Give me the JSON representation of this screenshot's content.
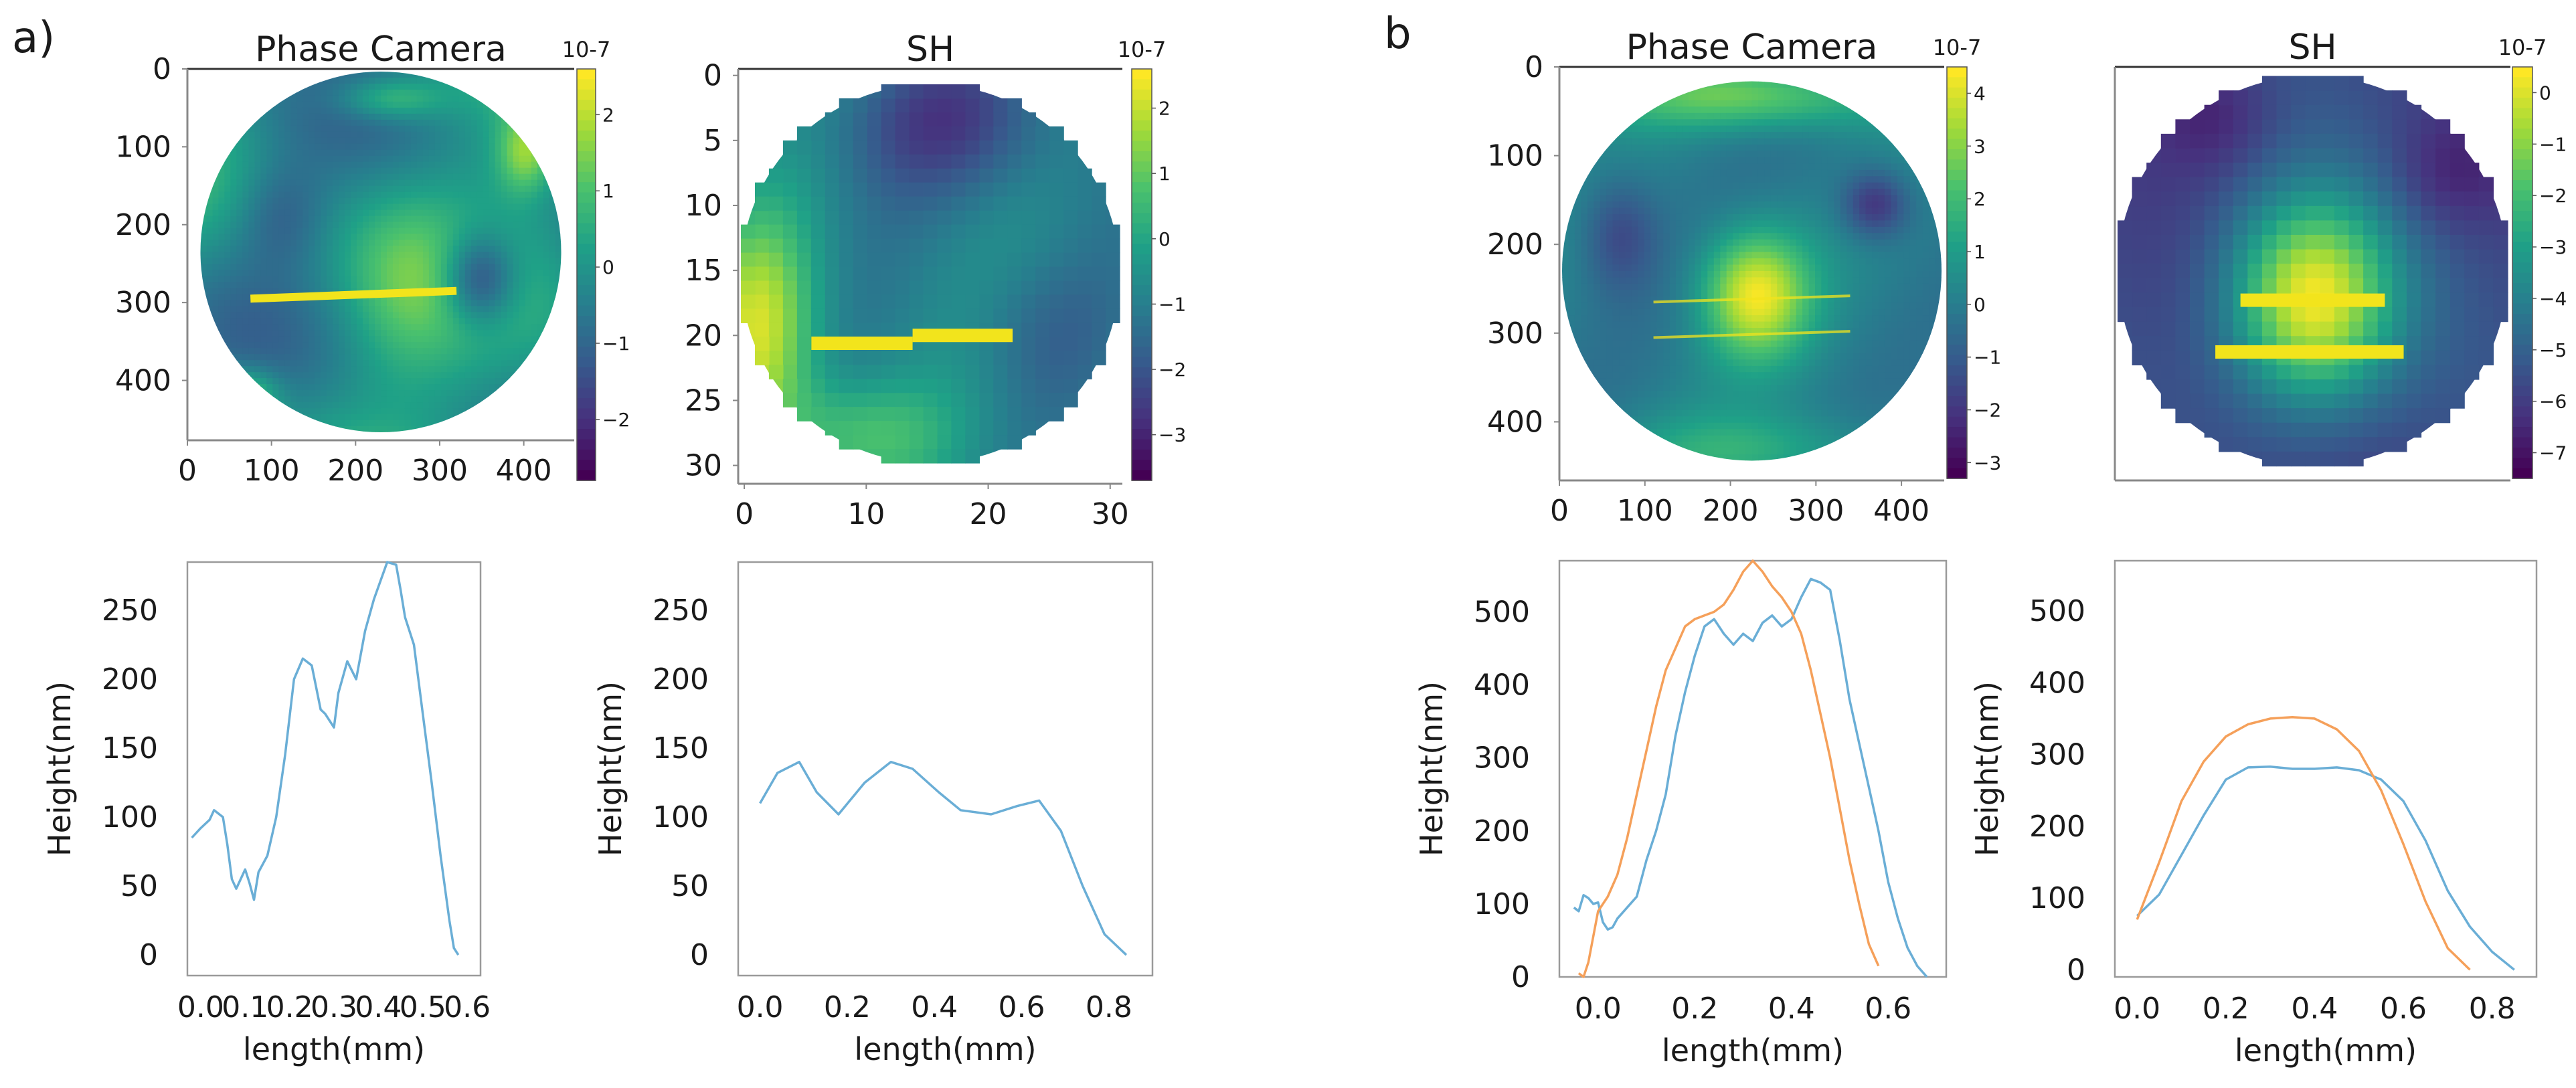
{
  "figure": {
    "panel_labels": [
      "a)",
      "b"
    ]
  },
  "colors": {
    "viridis": [
      "#440154",
      "#46327e",
      "#365c8d",
      "#277f8e",
      "#1fa187",
      "#4ac16d",
      "#a0da39",
      "#fde725"
    ],
    "line_blue": "#6aaed6",
    "line_orange": "#f5a05a",
    "marker": "#f2e41c"
  },
  "chart_data": [
    {
      "id": "a-phase-map",
      "type": "heatmap",
      "title": "Phase Camera",
      "x_ticks": [
        "0",
        "100",
        "200",
        "300",
        "400"
      ],
      "y_ticks": [
        "0",
        "100",
        "200",
        "300",
        "400"
      ],
      "xlim": [
        0,
        460
      ],
      "ylim": [
        0,
        470
      ],
      "colorbar": {
        "exponent": "10-7",
        "ticks": [
          "2",
          "1",
          "0",
          "-1",
          "-2"
        ],
        "range": [
          -2.8,
          2.6
        ]
      },
      "profile_lines": [
        [
          [
            75,
            295
          ],
          [
            320,
            285
          ]
        ]
      ]
    },
    {
      "id": "a-sh-map",
      "type": "heatmap",
      "title": "SH",
      "x_ticks": [
        "0",
        "10",
        "20",
        "30"
      ],
      "y_ticks": [
        "0",
        "5",
        "10",
        "15",
        "20",
        "25",
        "30"
      ],
      "xlim": [
        -0.5,
        31
      ],
      "ylim": [
        -0.5,
        31
      ],
      "colorbar": {
        "exponent": "10-7",
        "ticks": [
          "2",
          "1",
          "0",
          "-1",
          "-2",
          "-3"
        ],
        "range": [
          -3.7,
          2.6
        ]
      },
      "profile_lines": [
        [
          [
            5.5,
            20.6
          ],
          [
            13.8,
            20.6
          ]
        ],
        [
          [
            13.8,
            20
          ],
          [
            22,
            20
          ]
        ]
      ]
    },
    {
      "id": "a-phase-profile",
      "type": "line",
      "xlabel": "length(mm)",
      "ylabel": "Height(nm)",
      "x_ticks": [
        "0.0",
        "0.1",
        "0.2",
        "0.3",
        "0.4",
        "0.5",
        "0.6"
      ],
      "y_ticks": [
        "0",
        "50",
        "100",
        "150",
        "200",
        "250"
      ],
      "xlim": [
        -0.03,
        0.63
      ],
      "ylim": [
        -15,
        285
      ],
      "series": [
        {
          "name": "profile",
          "color": "blue",
          "x": [
            -0.02,
            0.0,
            0.02,
            0.03,
            0.05,
            0.06,
            0.07,
            0.08,
            0.1,
            0.11,
            0.12,
            0.13,
            0.15,
            0.17,
            0.19,
            0.21,
            0.23,
            0.25,
            0.27,
            0.28,
            0.3,
            0.31,
            0.33,
            0.35,
            0.37,
            0.39,
            0.42,
            0.44,
            0.45,
            0.46,
            0.48,
            0.5,
            0.52,
            0.54,
            0.56,
            0.57,
            0.58
          ],
          "y": [
            85,
            92,
            98,
            105,
            100,
            80,
            55,
            48,
            62,
            52,
            40,
            60,
            72,
            100,
            145,
            200,
            215,
            210,
            178,
            175,
            165,
            190,
            213,
            200,
            235,
            258,
            285,
            283,
            265,
            245,
            225,
            175,
            125,
            72,
            25,
            5,
            0
          ]
        }
      ]
    },
    {
      "id": "a-sh-profile",
      "type": "line",
      "xlabel": "length(mm)",
      "ylabel": "Height(nm)",
      "x_ticks": [
        "0.0",
        "0.2",
        "0.4",
        "0.6",
        "0.8"
      ],
      "y_ticks": [
        "0",
        "50",
        "100",
        "150",
        "200",
        "250"
      ],
      "xlim": [
        -0.05,
        0.9
      ],
      "ylim": [
        -15,
        285
      ],
      "series": [
        {
          "name": "profile",
          "color": "blue",
          "x": [
            0.0,
            0.04,
            0.09,
            0.13,
            0.18,
            0.24,
            0.3,
            0.35,
            0.41,
            0.46,
            0.53,
            0.59,
            0.64,
            0.69,
            0.74,
            0.79,
            0.84
          ],
          "y": [
            110,
            132,
            140,
            118,
            102,
            125,
            140,
            135,
            118,
            105,
            102,
            108,
            112,
            90,
            50,
            15,
            0
          ]
        }
      ]
    },
    {
      "id": "b-phase-map",
      "type": "heatmap",
      "title": "Phase Camera",
      "x_ticks": [
        "0",
        "100",
        "200",
        "300",
        "400"
      ],
      "y_ticks": [
        "0",
        "100",
        "200",
        "300",
        "400"
      ],
      "xlim": [
        0,
        450
      ],
      "ylim": [
        0,
        460
      ],
      "colorbar": {
        "exponent": "10-7",
        "ticks": [
          "4",
          "3",
          "2",
          "1",
          "0",
          "-1",
          "-2",
          "-3"
        ],
        "range": [
          -3.3,
          4.5
        ]
      },
      "profile_lines": [
        [
          [
            110,
            265
          ],
          [
            340,
            258
          ]
        ],
        [
          [
            110,
            305
          ],
          [
            340,
            298
          ]
        ]
      ]
    },
    {
      "id": "b-sh-map",
      "type": "heatmap",
      "title": "SH",
      "x_ticks": [],
      "y_ticks": [],
      "xlim": [
        -0.5,
        31
      ],
      "ylim": [
        -0.5,
        31
      ],
      "colorbar": {
        "exponent": "10-7",
        "ticks": [
          "0",
          "-1",
          "-2",
          "-3",
          "-4",
          "-5",
          "-6",
          "-7"
        ],
        "range": [
          -7.5,
          0.5
        ]
      },
      "profile_lines": [
        [
          [
            9.5,
            17.5
          ],
          [
            21,
            17.5
          ]
        ],
        [
          [
            7.5,
            21.5
          ],
          [
            22.5,
            21.5
          ]
        ]
      ]
    },
    {
      "id": "b-phase-profile",
      "type": "line",
      "xlabel": "length(mm)",
      "ylabel": "Height(nm)",
      "x_ticks": [
        "0.0",
        "0.2",
        "0.4",
        "0.6"
      ],
      "y_ticks": [
        "0",
        "100",
        "200",
        "300",
        "400",
        "500"
      ],
      "xlim": [
        -0.08,
        0.72
      ],
      "ylim": [
        0,
        570
      ],
      "series": [
        {
          "name": "blue",
          "color": "blue",
          "x": [
            -0.05,
            -0.04,
            -0.03,
            -0.02,
            -0.01,
            0.0,
            0.01,
            0.02,
            0.03,
            0.04,
            0.06,
            0.08,
            0.1,
            0.12,
            0.14,
            0.16,
            0.18,
            0.2,
            0.22,
            0.24,
            0.26,
            0.28,
            0.3,
            0.32,
            0.34,
            0.36,
            0.38,
            0.4,
            0.42,
            0.44,
            0.46,
            0.48,
            0.5,
            0.52,
            0.54,
            0.56,
            0.58,
            0.6,
            0.62,
            0.64,
            0.66,
            0.68
          ],
          "y": [
            95,
            90,
            112,
            108,
            100,
            102,
            75,
            65,
            68,
            80,
            95,
            110,
            160,
            200,
            250,
            330,
            390,
            440,
            480,
            490,
            470,
            455,
            470,
            460,
            485,
            495,
            480,
            490,
            520,
            545,
            540,
            530,
            460,
            380,
            320,
            260,
            200,
            130,
            80,
            40,
            15,
            0
          ]
        },
        {
          "name": "orange",
          "color": "orange",
          "x": [
            -0.04,
            -0.03,
            -0.02,
            0.0,
            0.02,
            0.04,
            0.06,
            0.08,
            0.1,
            0.12,
            0.14,
            0.16,
            0.18,
            0.2,
            0.22,
            0.24,
            0.26,
            0.28,
            0.3,
            0.32,
            0.34,
            0.36,
            0.38,
            0.4,
            0.42,
            0.44,
            0.46,
            0.48,
            0.5,
            0.52,
            0.54,
            0.56,
            0.58
          ],
          "y": [
            5,
            0,
            20,
            90,
            110,
            140,
            190,
            250,
            310,
            370,
            420,
            450,
            480,
            490,
            495,
            500,
            510,
            530,
            555,
            570,
            555,
            535,
            520,
            500,
            470,
            420,
            360,
            300,
            230,
            160,
            100,
            45,
            15
          ]
        }
      ]
    },
    {
      "id": "b-sh-profile",
      "type": "line",
      "xlabel": "length(mm)",
      "ylabel": "Height(nm)",
      "x_ticks": [
        "0.0",
        "0.2",
        "0.4",
        "0.6",
        "0.8"
      ],
      "y_ticks": [
        "0",
        "100",
        "200",
        "300",
        "400",
        "500"
      ],
      "xlim": [
        -0.05,
        0.9
      ],
      "ylim": [
        -10,
        570
      ],
      "series": [
        {
          "name": "blue",
          "color": "blue",
          "x": [
            0.0,
            0.05,
            0.1,
            0.15,
            0.2,
            0.25,
            0.3,
            0.35,
            0.4,
            0.45,
            0.5,
            0.55,
            0.6,
            0.65,
            0.7,
            0.75,
            0.8,
            0.85
          ],
          "y": [
            75,
            105,
            160,
            215,
            265,
            282,
            283,
            280,
            280,
            282,
            278,
            265,
            235,
            180,
            110,
            60,
            25,
            0
          ]
        },
        {
          "name": "orange",
          "color": "orange",
          "x": [
            0.0,
            0.05,
            0.1,
            0.15,
            0.2,
            0.25,
            0.3,
            0.35,
            0.4,
            0.45,
            0.5,
            0.55,
            0.6,
            0.65,
            0.7,
            0.75
          ],
          "y": [
            70,
            150,
            235,
            290,
            325,
            342,
            350,
            352,
            350,
            335,
            305,
            250,
            175,
            95,
            30,
            0
          ]
        }
      ]
    }
  ]
}
